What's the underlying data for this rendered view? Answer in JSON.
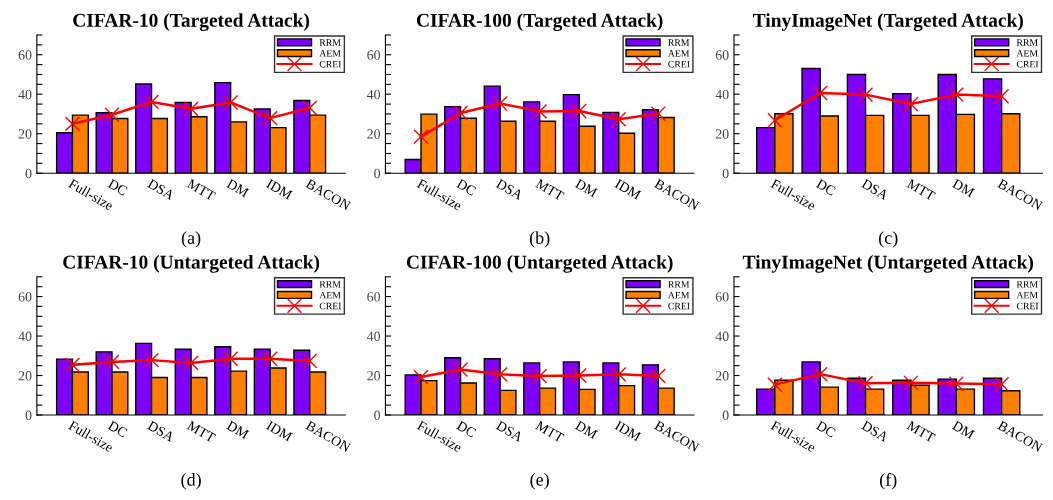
{
  "chart_data": [
    {
      "type": "bar",
      "title": "CIFAR-10 (Targeted Attack)",
      "categories": [
        "Full-size",
        "DC",
        "DSA",
        "MTT",
        "DM",
        "IDM",
        "BACON"
      ],
      "ylim": [
        0,
        70
      ],
      "yticks": [
        0,
        {
          "value": 5,
          "label": null
        },
        {
          "value": 10,
          "label": null
        },
        {
          "value": 15,
          "label": null
        },
        20,
        {
          "value": 25,
          "label": null
        },
        {
          "value": 30,
          "label": null
        },
        {
          "value": 35,
          "label": null
        },
        40,
        {
          "value": 45,
          "label": null
        },
        {
          "value": 50,
          "label": null
        },
        {
          "value": 55,
          "label": null
        },
        60,
        {
          "value": 65,
          "label": null
        },
        {
          "value": 70,
          "label": null
        }
      ],
      "legend": "top right",
      "grid": false,
      "annotations": [
        "(a)"
      ],
      "series": [
        {
          "name": "RRM",
          "color": "#8000ff",
          "values": [
            20.5,
            30.6,
            45.2,
            35.8,
            45.9,
            32.5,
            36.8
          ]
        },
        {
          "name": "AEM",
          "color": "#ff8000",
          "values": [
            29.4,
            27.7,
            27.7,
            28.6,
            26,
            23.1,
            29.4
          ]
        },
        {
          "name": "CREI",
          "type": "line",
          "color": "#ff0000",
          "marker": "cross",
          "values": [
            25,
            29.6,
            36.1,
            32.6,
            35.8,
            27.9,
            33.1
          ]
        }
      ]
    },
    {
      "type": "bar",
      "title": "CIFAR-100 (Targeted Attack)",
      "categories": [
        "Full-size",
        "DC",
        "DSA",
        "MTT",
        "DM",
        "IDM",
        "BACON"
      ],
      "ylim": [
        0,
        70
      ],
      "yticks": [
        0,
        {
          "value": 5,
          "label": null
        },
        {
          "value": 10,
          "label": null
        },
        {
          "value": 15,
          "label": null
        },
        20,
        {
          "value": 25,
          "label": null
        },
        {
          "value": 30,
          "label": null
        },
        {
          "value": 35,
          "label": null
        },
        40,
        {
          "value": 45,
          "label": null
        },
        {
          "value": 50,
          "label": null
        },
        {
          "value": 55,
          "label": null
        },
        60,
        {
          "value": 65,
          "label": null
        },
        {
          "value": 70,
          "label": null
        }
      ],
      "legend": "top right",
      "grid": false,
      "annotations": [
        "(b)"
      ],
      "series": [
        {
          "name": "RRM",
          "color": "#8000ff",
          "values": [
            6.9,
            33.7,
            44.1,
            36.1,
            39.8,
            30.8,
            32.1
          ]
        },
        {
          "name": "AEM",
          "color": "#ff8000",
          "values": [
            29.9,
            27.8,
            26.3,
            26.3,
            23.8,
            20.2,
            28.2
          ]
        },
        {
          "name": "CREI",
          "type": "line",
          "color": "#ff0000",
          "marker": "cross",
          "values": [
            18.5,
            30.5,
            35.3,
            31.3,
            31.5,
            27.3,
            30.2
          ]
        }
      ]
    },
    {
      "type": "bar",
      "title": "TinyImageNet (Targeted Attack)",
      "categories": [
        "Full-size",
        "DC",
        "DSA",
        "MTT",
        "DM",
        "BACON"
      ],
      "ylim": [
        0,
        70
      ],
      "yticks": [
        0,
        {
          "value": 5,
          "label": null
        },
        {
          "value": 10,
          "label": null
        },
        {
          "value": 15,
          "label": null
        },
        20,
        {
          "value": 25,
          "label": null
        },
        {
          "value": 30,
          "label": null
        },
        {
          "value": 35,
          "label": null
        },
        40,
        {
          "value": 45,
          "label": null
        },
        {
          "value": 50,
          "label": null
        },
        {
          "value": 55,
          "label": null
        },
        60,
        {
          "value": 65,
          "label": null
        },
        {
          "value": 70,
          "label": null
        }
      ],
      "legend": "top right",
      "grid": false,
      "annotations": [
        "(c)"
      ],
      "series": [
        {
          "name": "RRM",
          "color": "#8000ff",
          "values": [
            23.1,
            53,
            50,
            40.3,
            50,
            47.8
          ]
        },
        {
          "name": "AEM",
          "color": "#ff8000",
          "values": [
            30.1,
            29,
            29.3,
            29.3,
            29.8,
            30.1
          ]
        },
        {
          "name": "CREI",
          "type": "line",
          "color": "#ff0000",
          "marker": "cross",
          "values": [
            26.8,
            40.6,
            39.8,
            35,
            39.8,
            39
          ]
        }
      ]
    },
    {
      "type": "bar",
      "title": "CIFAR-10 (Untargeted Attack)",
      "categories": [
        "Full-size",
        "DC",
        "DSA",
        "MTT",
        "DM",
        "IDM",
        "BACON"
      ],
      "ylim": [
        0,
        70
      ],
      "yticks": [
        0,
        {
          "value": 5,
          "label": null
        },
        {
          "value": 10,
          "label": null
        },
        {
          "value": 15,
          "label": null
        },
        20,
        {
          "value": 25,
          "label": null
        },
        {
          "value": 30,
          "label": null
        },
        {
          "value": 35,
          "label": null
        },
        40,
        {
          "value": 45,
          "label": null
        },
        {
          "value": 50,
          "label": null
        },
        {
          "value": 55,
          "label": null
        },
        60,
        {
          "value": 65,
          "label": null
        },
        {
          "value": 70,
          "label": null
        }
      ],
      "legend": "top right",
      "grid": false,
      "annotations": [
        "(d)"
      ],
      "series": [
        {
          "name": "RRM",
          "color": "#8000ff",
          "values": [
            28.3,
            32,
            36.3,
            33.3,
            34.6,
            33.3,
            32.8
          ]
        },
        {
          "name": "AEM",
          "color": "#ff8000",
          "values": [
            21.8,
            21.8,
            19,
            19,
            22.2,
            23.8,
            21.8
          ]
        },
        {
          "name": "CREI",
          "type": "line",
          "color": "#ff0000",
          "marker": "cross",
          "values": [
            25.4,
            26.9,
            27.8,
            26.4,
            28.5,
            28.5,
            27.4
          ]
        }
      ]
    },
    {
      "type": "bar",
      "title": "CIFAR-100 (Untargeted Attack)",
      "categories": [
        "Full-size",
        "DC",
        "DSA",
        "MTT",
        "DM",
        "IDM",
        "BACON"
      ],
      "ylim": [
        0,
        70
      ],
      "yticks": [
        0,
        {
          "value": 5,
          "label": null
        },
        {
          "value": 10,
          "label": null
        },
        {
          "value": 15,
          "label": null
        },
        20,
        {
          "value": 25,
          "label": null
        },
        {
          "value": 30,
          "label": null
        },
        {
          "value": 35,
          "label": null
        },
        40,
        {
          "value": 45,
          "label": null
        },
        {
          "value": 50,
          "label": null
        },
        {
          "value": 55,
          "label": null
        },
        60,
        {
          "value": 65,
          "label": null
        },
        {
          "value": 70,
          "label": null
        }
      ],
      "legend": "top right",
      "grid": false,
      "annotations": [
        "(e)"
      ],
      "series": [
        {
          "name": "RRM",
          "color": "#8000ff",
          "values": [
            20.3,
            29,
            28.5,
            26.4,
            26.9,
            26.4,
            25.4
          ]
        },
        {
          "name": "AEM",
          "color": "#ff8000",
          "values": [
            17.4,
            16.2,
            12.5,
            13.6,
            13,
            14.9,
            13.6
          ]
        },
        {
          "name": "CREI",
          "type": "line",
          "color": "#ff0000",
          "marker": "cross",
          "values": [
            19.2,
            23,
            20.6,
            19.7,
            20,
            20.6,
            19.8
          ]
        }
      ]
    },
    {
      "type": "bar",
      "title": "TinyImageNet (Untargeted Attack)",
      "categories": [
        "Full-size",
        "DC",
        "DSA",
        "MTT",
        "DM",
        "BACON"
      ],
      "ylim": [
        0,
        70
      ],
      "yticks": [
        0,
        {
          "value": 5,
          "label": null
        },
        {
          "value": 10,
          "label": null
        },
        {
          "value": 15,
          "label": null
        },
        20,
        {
          "value": 25,
          "label": null
        },
        {
          "value": 30,
          "label": null
        },
        {
          "value": 35,
          "label": null
        },
        40,
        {
          "value": 45,
          "label": null
        },
        {
          "value": 50,
          "label": null
        },
        {
          "value": 55,
          "label": null
        },
        60,
        {
          "value": 65,
          "label": null
        },
        {
          "value": 70,
          "label": null
        }
      ],
      "legend": "top right",
      "grid": false,
      "annotations": [
        "(f)"
      ],
      "series": [
        {
          "name": "RRM",
          "color": "#8000ff",
          "values": [
            13.1,
            26.9,
            18.6,
            17.6,
            18.2,
            18.6
          ]
        },
        {
          "name": "AEM",
          "color": "#ff8000",
          "values": [
            17.6,
            14.1,
            13.1,
            15.1,
            13.1,
            12.3
          ]
        },
        {
          "name": "CREI",
          "type": "line",
          "color": "#ff0000",
          "marker": "cross",
          "values": [
            15.4,
            20.7,
            16.1,
            16.3,
            15.9,
            15.6
          ]
        }
      ]
    }
  ]
}
